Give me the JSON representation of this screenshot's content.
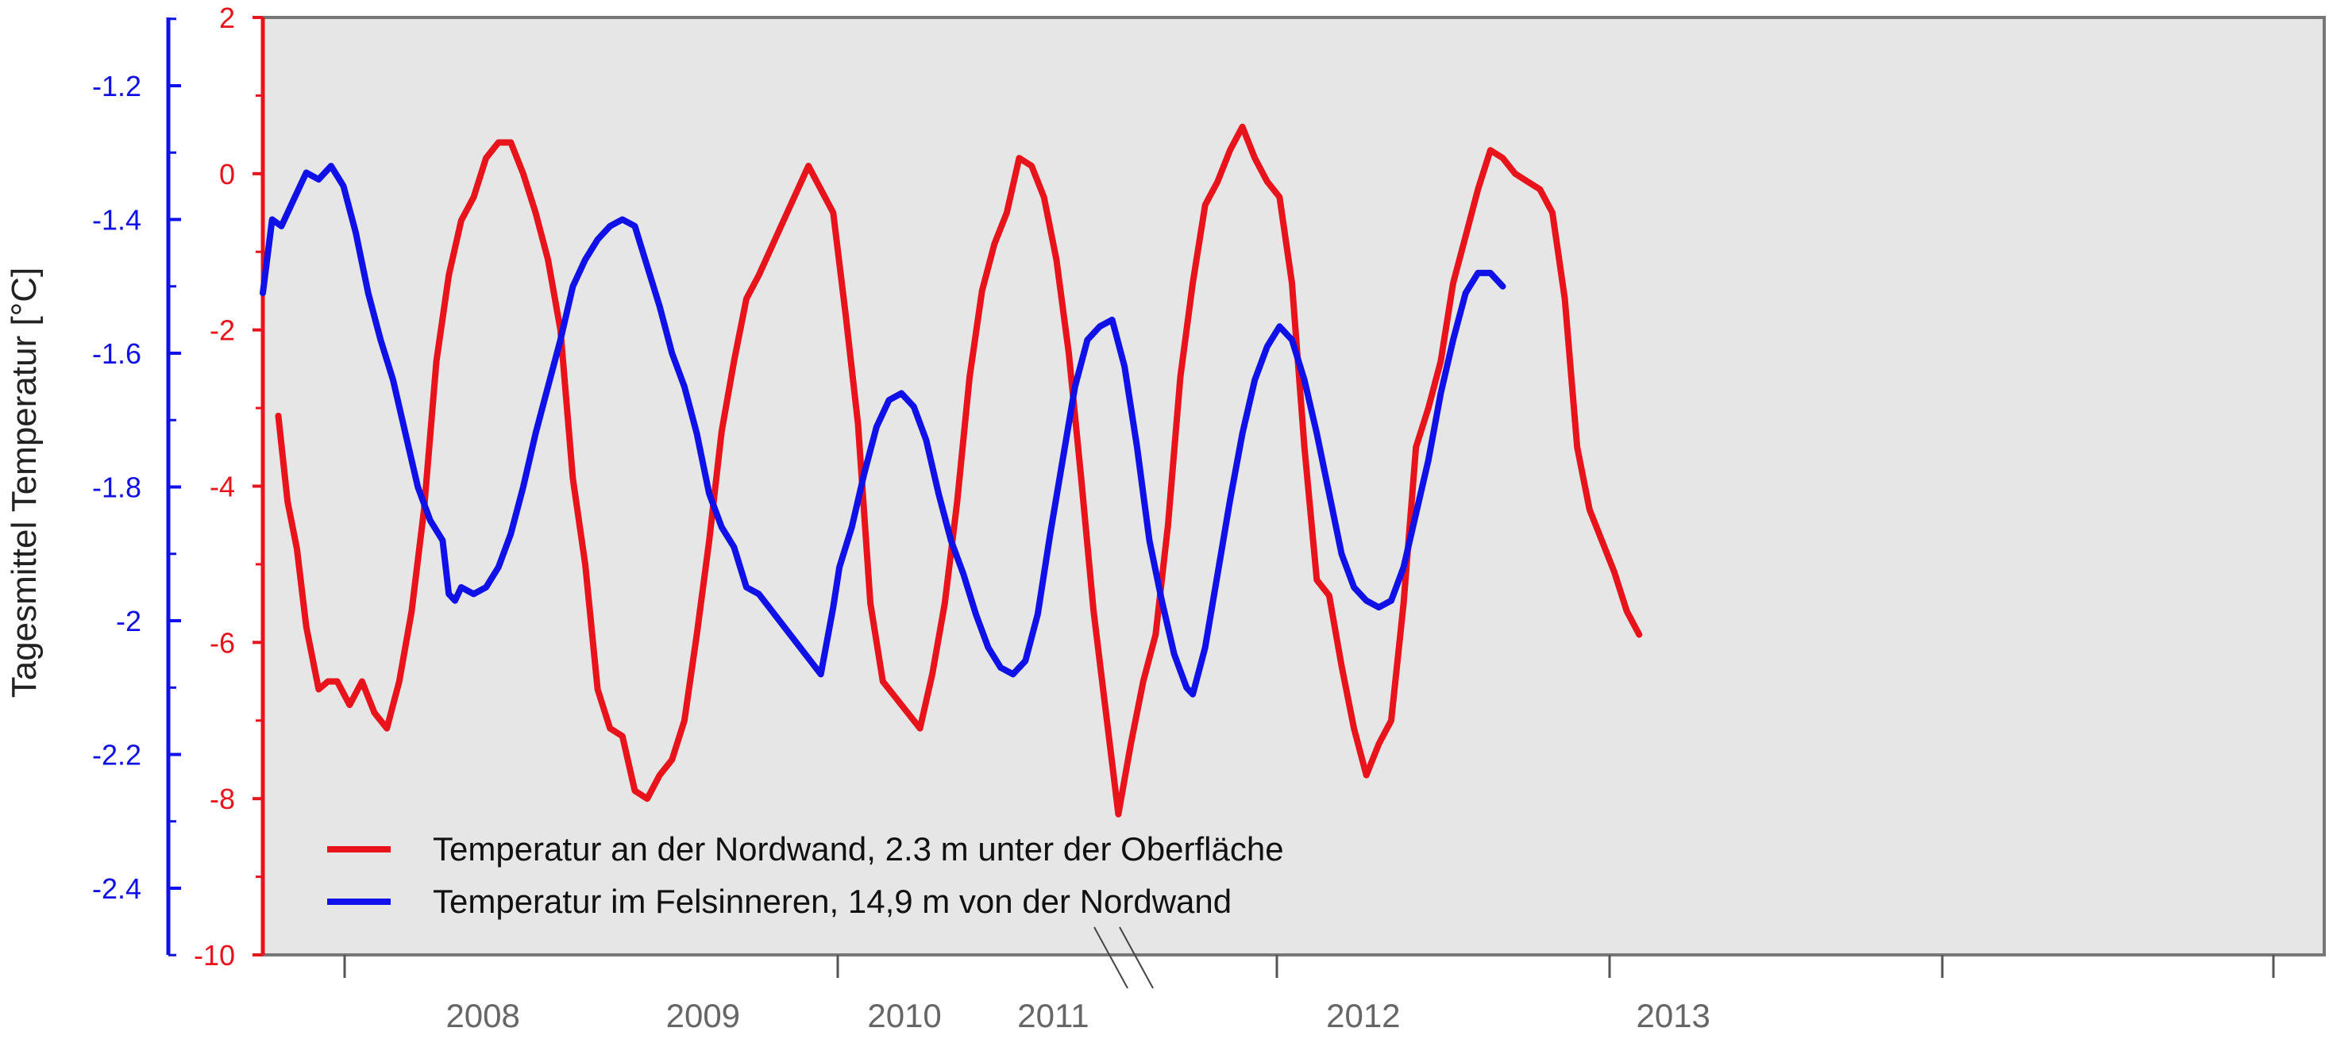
{
  "chart_data": {
    "type": "line",
    "ylabel": "Tagesmittel Temperatur  [°C]",
    "x_axis": {
      "range": [
        2007.2,
        2013.85
      ],
      "break_between": [
        "2009",
        "2010"
      ],
      "year_labels": [
        {
          "label": "2008",
          "x": 2007.91
        },
        {
          "label": "2009",
          "x": 2008.62
        },
        {
          "label": "2010",
          "x": 2009.27
        },
        {
          "label": "2011",
          "x": 2009.75
        },
        {
          "label": "2012",
          "x": 2010.75
        },
        {
          "label": "2013",
          "x": 2011.75
        }
      ]
    },
    "y_axis_left_red": {
      "range": [
        -10,
        2
      ],
      "color": "#e8131b",
      "ticks": [
        "2",
        "0",
        "-2",
        "-4",
        "-6",
        "-8",
        "-10"
      ]
    },
    "y_axis_left_blue": {
      "range": [
        -2.5,
        -1.1
      ],
      "color": "#1010e8",
      "ticks": [
        "-1.2",
        "-1.4",
        "-1.6",
        "-1.8",
        "-2",
        "-2.2",
        "-2.4"
      ]
    },
    "legend": {
      "placement": "bottom-left",
      "entries": [
        {
          "label": "Temperatur an der Nordwand, 2.3 m unter der Oberfläche",
          "color": "#e8131b"
        },
        {
          "label": "Temperatur im Felsinneren, 14,9 m von der Nordwand",
          "color": "#1010e8"
        }
      ]
    },
    "series": [
      {
        "axis": "red",
        "color": "#e8131b",
        "points": [
          [
            2007.25,
            -3.1
          ],
          [
            2007.28,
            -4.2
          ],
          [
            2007.31,
            -4.8
          ],
          [
            2007.34,
            -5.8
          ],
          [
            2007.38,
            -6.6
          ],
          [
            2007.41,
            -6.5
          ],
          [
            2007.44,
            -6.5
          ],
          [
            2007.48,
            -6.8
          ],
          [
            2007.52,
            -6.5
          ],
          [
            2007.56,
            -6.9
          ],
          [
            2007.6,
            -7.1
          ],
          [
            2007.64,
            -6.5
          ],
          [
            2007.68,
            -5.6
          ],
          [
            2007.72,
            -4.3
          ],
          [
            2007.76,
            -2.4
          ],
          [
            2007.8,
            -1.3
          ],
          [
            2007.84,
            -0.6
          ],
          [
            2007.88,
            -0.3
          ],
          [
            2007.92,
            0.2
          ],
          [
            2007.96,
            0.4
          ],
          [
            2008.0,
            0.4
          ],
          [
            2008.04,
            0.0
          ],
          [
            2008.08,
            -0.5
          ],
          [
            2008.12,
            -1.1
          ],
          [
            2008.16,
            -2.0
          ],
          [
            2008.2,
            -3.9
          ],
          [
            2008.24,
            -5.0
          ],
          [
            2008.28,
            -6.6
          ],
          [
            2008.32,
            -7.1
          ],
          [
            2008.36,
            -7.2
          ],
          [
            2008.4,
            -7.9
          ],
          [
            2008.44,
            -8.0
          ],
          [
            2008.48,
            -7.7
          ],
          [
            2008.52,
            -7.5
          ],
          [
            2008.56,
            -7.0
          ],
          [
            2008.6,
            -5.9
          ],
          [
            2008.64,
            -4.7
          ],
          [
            2008.68,
            -3.3
          ],
          [
            2008.72,
            -2.4
          ],
          [
            2008.76,
            -1.6
          ],
          [
            2008.8,
            -1.3
          ],
          [
            2008.88,
            -0.6
          ],
          [
            2008.96,
            0.1
          ],
          [
            2009.0,
            -0.2
          ],
          [
            2009.04,
            -0.5
          ],
          [
            2009.08,
            -1.8
          ],
          [
            2009.12,
            -3.2
          ],
          [
            2009.16,
            -5.5
          ],
          [
            2009.2,
            -6.5
          ],
          [
            2009.24,
            -6.7
          ],
          [
            2009.28,
            -6.9
          ],
          [
            2009.32,
            -7.1
          ],
          [
            2009.36,
            -6.4
          ],
          [
            2009.4,
            -5.5
          ],
          [
            2009.44,
            -4.2
          ],
          [
            2009.48,
            -2.6
          ],
          [
            2009.52,
            -1.5
          ],
          [
            2009.56,
            -0.9
          ],
          [
            2009.6,
            -0.5
          ],
          [
            2009.64,
            0.2
          ],
          [
            2009.68,
            0.1
          ],
          [
            2009.72,
            -0.3
          ],
          [
            2009.76,
            -1.1
          ],
          [
            2009.8,
            -2.3
          ],
          [
            2009.84,
            -3.9
          ],
          [
            2009.88,
            -5.6
          ],
          [
            2009.92,
            -6.9
          ],
          [
            2009.96,
            -8.2
          ],
          [
            2010.0,
            -7.3
          ],
          [
            2010.04,
            -6.5
          ],
          [
            2010.08,
            -5.9
          ],
          [
            2010.12,
            -4.5
          ],
          [
            2010.16,
            -2.6
          ],
          [
            2010.2,
            -1.4
          ],
          [
            2010.24,
            -0.4
          ],
          [
            2010.28,
            -0.1
          ],
          [
            2010.32,
            0.3
          ],
          [
            2010.36,
            0.6
          ],
          [
            2010.4,
            0.2
          ],
          [
            2010.44,
            -0.1
          ],
          [
            2010.48,
            -0.3
          ],
          [
            2010.52,
            -1.4
          ],
          [
            2010.56,
            -3.5
          ],
          [
            2010.6,
            -5.2
          ],
          [
            2010.64,
            -5.4
          ],
          [
            2010.68,
            -6.3
          ],
          [
            2010.72,
            -7.1
          ],
          [
            2010.76,
            -7.7
          ],
          [
            2010.8,
            -7.3
          ],
          [
            2010.84,
            -7.0
          ],
          [
            2010.88,
            -5.5
          ],
          [
            2010.92,
            -3.5
          ],
          [
            2010.96,
            -3.0
          ],
          [
            2011.0,
            -2.4
          ],
          [
            2011.04,
            -1.4
          ],
          [
            2011.08,
            -0.8
          ],
          [
            2011.12,
            -0.2
          ],
          [
            2011.16,
            0.3
          ],
          [
            2011.2,
            0.2
          ],
          [
            2011.24,
            0.0
          ],
          [
            2011.28,
            -0.1
          ],
          [
            2011.32,
            -0.2
          ],
          [
            2011.36,
            -0.5
          ],
          [
            2011.4,
            -1.6
          ],
          [
            2011.44,
            -3.5
          ],
          [
            2011.48,
            -4.3
          ],
          [
            2011.52,
            -4.7
          ],
          [
            2011.56,
            -5.1
          ],
          [
            2011.6,
            -5.6
          ],
          [
            2011.64,
            -5.9
          ]
        ]
      },
      {
        "axis": "blue",
        "color": "#1010e8",
        "points": [
          [
            2007.2,
            -1.51
          ],
          [
            2007.23,
            -1.4
          ],
          [
            2007.26,
            -1.41
          ],
          [
            2007.3,
            -1.37
          ],
          [
            2007.34,
            -1.33
          ],
          [
            2007.38,
            -1.34
          ],
          [
            2007.42,
            -1.32
          ],
          [
            2007.46,
            -1.35
          ],
          [
            2007.5,
            -1.42
          ],
          [
            2007.54,
            -1.51
          ],
          [
            2007.58,
            -1.58
          ],
          [
            2007.62,
            -1.64
          ],
          [
            2007.66,
            -1.72
          ],
          [
            2007.7,
            -1.8
          ],
          [
            2007.74,
            -1.85
          ],
          [
            2007.78,
            -1.88
          ],
          [
            2007.8,
            -1.96
          ],
          [
            2007.82,
            -1.97
          ],
          [
            2007.84,
            -1.95
          ],
          [
            2007.88,
            -1.96
          ],
          [
            2007.92,
            -1.95
          ],
          [
            2007.96,
            -1.92
          ],
          [
            2008.0,
            -1.87
          ],
          [
            2008.04,
            -1.8
          ],
          [
            2008.08,
            -1.72
          ],
          [
            2008.12,
            -1.65
          ],
          [
            2008.16,
            -1.58
          ],
          [
            2008.2,
            -1.5
          ],
          [
            2008.24,
            -1.46
          ],
          [
            2008.28,
            -1.43
          ],
          [
            2008.32,
            -1.41
          ],
          [
            2008.36,
            -1.4
          ],
          [
            2008.4,
            -1.41
          ],
          [
            2008.44,
            -1.47
          ],
          [
            2008.48,
            -1.53
          ],
          [
            2008.52,
            -1.6
          ],
          [
            2008.56,
            -1.65
          ],
          [
            2008.6,
            -1.72
          ],
          [
            2008.64,
            -1.81
          ],
          [
            2008.68,
            -1.86
          ],
          [
            2008.72,
            -1.89
          ],
          [
            2008.76,
            -1.95
          ],
          [
            2008.8,
            -1.96
          ],
          [
            2009.0,
            -2.08
          ],
          [
            2009.02,
            -2.03
          ],
          [
            2009.04,
            -1.98
          ],
          [
            2009.06,
            -1.92
          ],
          [
            2009.1,
            -1.86
          ],
          [
            2009.14,
            -1.78
          ],
          [
            2009.18,
            -1.71
          ],
          [
            2009.22,
            -1.67
          ],
          [
            2009.26,
            -1.66
          ],
          [
            2009.3,
            -1.68
          ],
          [
            2009.34,
            -1.73
          ],
          [
            2009.38,
            -1.81
          ],
          [
            2009.42,
            -1.88
          ],
          [
            2009.46,
            -1.93
          ],
          [
            2009.5,
            -1.99
          ],
          [
            2009.54,
            -2.04
          ],
          [
            2009.58,
            -2.07
          ],
          [
            2009.62,
            -2.08
          ],
          [
            2009.66,
            -2.06
          ],
          [
            2009.7,
            -1.99
          ],
          [
            2009.74,
            -1.87
          ],
          [
            2009.78,
            -1.76
          ],
          [
            2009.82,
            -1.65
          ],
          [
            2009.86,
            -1.58
          ],
          [
            2009.9,
            -1.56
          ],
          [
            2009.94,
            -1.55
          ],
          [
            2009.98,
            -1.62
          ],
          [
            2010.02,
            -1.74
          ],
          [
            2010.06,
            -1.88
          ],
          [
            2010.1,
            -1.97
          ],
          [
            2010.14,
            -2.05
          ],
          [
            2010.18,
            -2.1
          ],
          [
            2010.2,
            -2.11
          ],
          [
            2010.24,
            -2.04
          ],
          [
            2010.28,
            -1.93
          ],
          [
            2010.32,
            -1.82
          ],
          [
            2010.36,
            -1.72
          ],
          [
            2010.4,
            -1.64
          ],
          [
            2010.44,
            -1.59
          ],
          [
            2010.48,
            -1.56
          ],
          [
            2010.52,
            -1.58
          ],
          [
            2010.56,
            -1.64
          ],
          [
            2010.6,
            -1.72
          ],
          [
            2010.64,
            -1.81
          ],
          [
            2010.68,
            -1.9
          ],
          [
            2010.72,
            -1.95
          ],
          [
            2010.76,
            -1.97
          ],
          [
            2010.8,
            -1.98
          ],
          [
            2010.84,
            -1.97
          ],
          [
            2010.88,
            -1.92
          ],
          [
            2010.92,
            -1.84
          ],
          [
            2010.96,
            -1.76
          ],
          [
            2011.0,
            -1.66
          ],
          [
            2011.04,
            -1.58
          ],
          [
            2011.08,
            -1.51
          ],
          [
            2011.12,
            -1.48
          ],
          [
            2011.16,
            -1.48
          ],
          [
            2011.2,
            -1.5
          ]
        ]
      }
    ]
  }
}
